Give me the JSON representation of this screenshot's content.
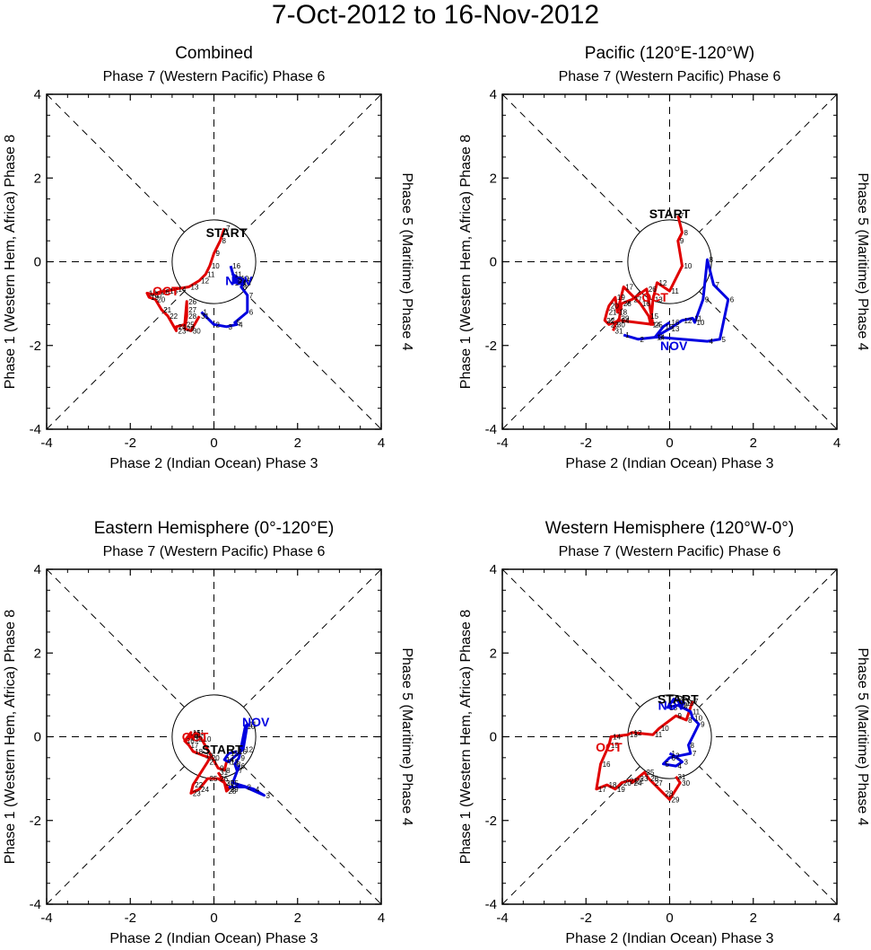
{
  "title": "7-Oct-2012 to 16-Nov-2012",
  "colors": {
    "oct": "#e00000",
    "nov": "#0000e0",
    "axis": "#000000"
  },
  "chart_data": [
    {
      "type": "line",
      "panel_title": "Combined",
      "top_label": "Phase 7 (Western Pacific) Phase 6",
      "bottom_label": "Phase 2 (Indian Ocean) Phase 3",
      "left_label": "Phase 1 (Western Hem, Africa) Phase 8",
      "right_label": "Phase 5 (Maritime) Phase 4",
      "xlim": [
        -4,
        4
      ],
      "ylim": [
        -4,
        4
      ],
      "xticks": [
        "-4",
        "-2",
        "0",
        "2",
        "4"
      ],
      "yticks": [
        "-4",
        "-2",
        "0",
        "2",
        "4"
      ],
      "start_label": "START",
      "start_pos": [
        0.3,
        0.7
      ],
      "series": [
        {
          "name": "OCT",
          "label_pos": [
            -1.15,
            -0.7
          ],
          "points": [
            [
              "7",
              0.25,
              0.8
            ],
            [
              "8",
              0.15,
              0.5
            ],
            [
              "9",
              0.0,
              0.2
            ],
            [
              "10",
              -0.1,
              -0.1
            ],
            [
              "11",
              -0.2,
              -0.3
            ],
            [
              "12",
              -0.35,
              -0.45
            ],
            [
              "13",
              -0.6,
              -0.6
            ],
            [
              "14",
              -0.9,
              -0.65
            ],
            [
              "15",
              -1.1,
              -0.7
            ],
            [
              "16",
              -1.3,
              -0.72
            ],
            [
              "17",
              -1.45,
              -0.78
            ],
            [
              "18",
              -1.6,
              -0.75
            ],
            [
              "19",
              -1.55,
              -0.85
            ],
            [
              "20",
              -1.4,
              -0.9
            ],
            [
              "21",
              -1.25,
              -1.15
            ],
            [
              "22",
              -1.1,
              -1.3
            ],
            [
              "23",
              -0.9,
              -1.65
            ],
            [
              "24",
              -0.9,
              -1.55
            ],
            [
              "25",
              -0.7,
              -1.5
            ],
            [
              "26",
              -0.65,
              -0.95
            ],
            [
              "27",
              -0.65,
              -1.15
            ],
            [
              "28",
              -0.65,
              -1.3
            ],
            [
              "29",
              -0.7,
              -1.6
            ],
            [
              "30",
              -0.55,
              -1.65
            ],
            [
              "31",
              -0.35,
              -1.3
            ]
          ]
        },
        {
          "name": "NOV",
          "label_pos": [
            0.6,
            -0.45
          ],
          "points": [
            [
              "1",
              -0.3,
              -1.2
            ],
            [
              "2",
              0.0,
              -1.5
            ],
            [
              "3",
              0.3,
              -1.55
            ],
            [
              "4",
              0.55,
              -1.5
            ],
            [
              "5",
              0.5,
              -1.45
            ],
            [
              "6",
              0.8,
              -1.2
            ],
            [
              "7",
              0.8,
              -0.8
            ],
            [
              "8",
              0.65,
              -0.6
            ],
            [
              "9",
              0.75,
              -0.45
            ],
            [
              "10",
              0.6,
              -0.4
            ],
            [
              "11",
              0.45,
              -0.3
            ],
            [
              "12",
              0.55,
              -0.45
            ],
            [
              "13",
              0.65,
              -0.5
            ],
            [
              "14",
              0.45,
              -0.5
            ],
            [
              "15",
              0.5,
              -0.45
            ],
            [
              "16",
              0.4,
              -0.1
            ]
          ]
        }
      ]
    },
    {
      "type": "line",
      "panel_title": "Pacific (120°E-120°W)",
      "top_label": "Phase 7 (Western Pacific) Phase 6",
      "bottom_label": "Phase 2 (Indian Ocean) Phase 3",
      "left_label": "Phase 1 (Western Hem, Africa) Phase 8",
      "right_label": "Phase 5 (Maritime) Phase 4",
      "xlim": [
        -4,
        4
      ],
      "ylim": [
        -4,
        4
      ],
      "xticks": [
        "-4",
        "-2",
        "0",
        "2",
        "4"
      ],
      "yticks": [
        "-4",
        "-2",
        "0",
        "2",
        "4"
      ],
      "start_label": "START",
      "start_pos": [
        0.0,
        1.15
      ],
      "series": [
        {
          "name": "OCT",
          "label_pos": [
            -0.35,
            -0.85
          ],
          "points": [
            [
              "7",
              0.2,
              1.1
            ],
            [
              "8",
              0.3,
              0.7
            ],
            [
              "9",
              0.2,
              0.5
            ],
            [
              "10",
              0.3,
              -0.1
            ],
            [
              "11",
              0.0,
              -0.7
            ],
            [
              "12",
              -0.3,
              -0.5
            ],
            [
              "13",
              -0.4,
              -0.9
            ],
            [
              "14",
              -0.45,
              -1.5
            ],
            [
              "15",
              -0.5,
              -1.3
            ],
            [
              "16",
              -0.7,
              -1.0
            ],
            [
              "17",
              -1.1,
              -0.6
            ],
            [
              "18",
              -1.25,
              -1.2
            ],
            [
              "19",
              -1.3,
              -0.85
            ],
            [
              "20",
              -1.45,
              -1.05
            ],
            [
              "21",
              -1.5,
              -1.2
            ],
            [
              "22",
              -1.55,
              -1.4
            ],
            [
              "23",
              -1.45,
              -1.5
            ],
            [
              "24",
              -1.2,
              -1.4
            ],
            [
              "25",
              -0.4,
              -1.5
            ],
            [
              "26",
              -0.55,
              -0.65
            ],
            [
              "27",
              -0.9,
              -0.9
            ],
            [
              "28",
              -1.15,
              -1.0
            ],
            [
              "29",
              -1.2,
              -1.35
            ],
            [
              "30",
              -1.3,
              -1.5
            ],
            [
              "31",
              -1.35,
              -1.65
            ]
          ]
        },
        {
          "name": "NOV",
          "label_pos": [
            0.1,
            -2.0
          ],
          "points": [
            [
              "1",
              -1.1,
              -1.75
            ],
            [
              "2",
              -0.75,
              -1.85
            ],
            [
              "3",
              -0.3,
              -1.8
            ],
            [
              "4",
              0.9,
              -1.9
            ],
            [
              "5",
              1.2,
              -1.85
            ],
            [
              "6",
              1.4,
              -0.9
            ],
            [
              "7",
              1.05,
              -0.55
            ],
            [
              "8",
              0.9,
              0.05
            ],
            [
              "9",
              0.8,
              -0.9
            ],
            [
              "10",
              0.6,
              -1.45
            ],
            [
              "11",
              0.55,
              -1.35
            ],
            [
              "12",
              0.3,
              -1.4
            ],
            [
              "13",
              0.0,
              -1.6
            ],
            [
              "14",
              -0.35,
              -1.8
            ],
            [
              "15",
              -0.15,
              -1.55
            ],
            [
              "16",
              0.0,
              -1.45
            ]
          ]
        }
      ]
    },
    {
      "type": "line",
      "panel_title": "Eastern Hemisphere (0°-120°E)",
      "top_label": "Phase 7 (Western Pacific) Phase 6",
      "bottom_label": "Phase 2 (Indian Ocean) Phase 3",
      "left_label": "Phase 1 (Western Hem, Africa) Phase 8",
      "right_label": "Phase 5 (Maritime) Phase 4",
      "xlim": [
        -4,
        4
      ],
      "ylim": [
        -4,
        4
      ],
      "xticks": [
        "-4",
        "-2",
        "0",
        "2",
        "4"
      ],
      "yticks": [
        "-4",
        "-2",
        "0",
        "2",
        "4"
      ],
      "start_label": "START",
      "start_pos": [
        0.2,
        -0.3
      ],
      "series": [
        {
          "name": "OCT",
          "label_pos": [
            -0.45,
            0.0
          ],
          "points": [
            [
              "7",
              0.3,
              -0.6
            ],
            [
              "8",
              0.25,
              -0.8
            ],
            [
              "9",
              0.1,
              -0.75
            ],
            [
              "10",
              -0.3,
              -0.05
            ],
            [
              "11",
              -0.45,
              0.1
            ],
            [
              "12",
              -0.5,
              -0.05
            ],
            [
              "13",
              -0.55,
              0.05
            ],
            [
              "14",
              -0.6,
              0.0
            ],
            [
              "15",
              -0.55,
              0.1
            ],
            [
              "16",
              -0.7,
              -0.1
            ],
            [
              "17",
              -0.6,
              -0.2
            ],
            [
              "18",
              -0.5,
              -0.35
            ],
            [
              "19",
              -0.25,
              -0.45
            ],
            [
              "20",
              -0.1,
              -0.5
            ],
            [
              "21",
              -0.15,
              -0.6
            ],
            [
              "22",
              -0.5,
              -1.15
            ],
            [
              "23",
              -0.55,
              -1.35
            ],
            [
              "24",
              -0.35,
              -1.25
            ],
            [
              "25",
              -0.15,
              -1.0
            ],
            [
              "26",
              0.1,
              -1.0
            ],
            [
              "27",
              0.25,
              -1.1
            ],
            [
              "28",
              0.3,
              -1.3
            ],
            [
              "29",
              0.35,
              -1.25
            ],
            [
              "30",
              0.25,
              -1.1
            ],
            [
              "31",
              0.1,
              -0.85
            ]
          ]
        },
        {
          "name": "NOV",
          "label_pos": [
            1.0,
            0.35
          ],
          "points": [
            [
              "1",
              0.35,
              -1.2
            ],
            [
              "2",
              0.75,
              -1.2
            ],
            [
              "3",
              1.2,
              -1.4
            ],
            [
              "4",
              0.95,
              -1.25
            ],
            [
              "5",
              0.45,
              -1.1
            ],
            [
              "6",
              0.6,
              -0.7
            ],
            [
              "7",
              0.55,
              -0.8
            ],
            [
              "8",
              0.5,
              -0.65
            ],
            [
              "9",
              0.6,
              -0.5
            ],
            [
              "10",
              0.75,
              0.25
            ],
            [
              "11",
              0.8,
              0.3
            ],
            [
              "12",
              0.7,
              -0.3
            ],
            [
              "13",
              0.35,
              -0.6
            ],
            [
              "14",
              0.25,
              -0.55
            ],
            [
              "15",
              0.35,
              -0.4
            ],
            [
              "16",
              0.55,
              -0.35
            ]
          ]
        }
      ]
    },
    {
      "type": "line",
      "panel_title": "Western Hemisphere (120°W-0°)",
      "top_label": "Phase 7 (Western Pacific) Phase 6",
      "bottom_label": "Phase 2 (Indian Ocean) Phase 3",
      "left_label": "Phase 1 (Western Hem, Africa) Phase 8",
      "right_label": "Phase 5 (Maritime) Phase 4",
      "xlim": [
        -4,
        4
      ],
      "ylim": [
        -4,
        4
      ],
      "xticks": [
        "-4",
        "-2",
        "0",
        "2",
        "4"
      ],
      "yticks": [
        "-4",
        "-2",
        "0",
        "2",
        "4"
      ],
      "start_label": "START",
      "start_pos": [
        0.2,
        0.9
      ],
      "series": [
        {
          "name": "OCT",
          "label_pos": [
            -1.45,
            -0.25
          ],
          "points": [
            [
              "7",
              0.55,
              0.85
            ],
            [
              "8",
              0.4,
              0.4
            ],
            [
              "9",
              0.15,
              0.5
            ],
            [
              "10",
              -0.25,
              0.2
            ],
            [
              "11",
              -0.4,
              0.05
            ],
            [
              "12",
              -0.9,
              0.1
            ],
            [
              "13",
              -1.0,
              0.05
            ],
            [
              "14",
              -1.4,
              0.0
            ],
            [
              "15",
              -1.45,
              -0.2
            ],
            [
              "16",
              -1.65,
              -0.65
            ],
            [
              "17",
              -1.75,
              -1.25
            ],
            [
              "18",
              -1.5,
              -1.15
            ],
            [
              "19",
              -1.3,
              -1.25
            ],
            [
              "20",
              -1.15,
              -1.1
            ],
            [
              "21",
              -1.0,
              -1.05
            ],
            [
              "22",
              -0.85,
              -1.05
            ],
            [
              "23",
              -0.75,
              -1.0
            ],
            [
              "24",
              -0.9,
              -1.1
            ],
            [
              "25",
              -0.6,
              -0.85
            ],
            [
              "26",
              -0.5,
              -1.0
            ],
            [
              "27",
              -0.4,
              -1.1
            ],
            [
              "28",
              -0.15,
              -1.35
            ],
            [
              "29",
              0.0,
              -1.5
            ],
            [
              "30",
              0.25,
              -1.1
            ],
            [
              "31",
              0.15,
              -0.95
            ]
          ]
        },
        {
          "name": "NOV",
          "label_pos": [
            0.05,
            0.75
          ],
          "points": [
            [
              "1",
              0.0,
              -0.4
            ],
            [
              "2",
              0.1,
              -0.45
            ],
            [
              "3",
              0.3,
              -0.6
            ],
            [
              "4",
              0.15,
              -0.7
            ],
            [
              "5",
              -0.15,
              -0.65
            ],
            [
              "6",
              0.0,
              -0.5
            ],
            [
              "7",
              0.5,
              -0.4
            ],
            [
              "8",
              0.45,
              -0.2
            ],
            [
              "9",
              0.7,
              0.3
            ],
            [
              "10",
              0.55,
              0.45
            ],
            [
              "11",
              0.5,
              0.6
            ],
            [
              "12",
              0.2,
              0.75
            ],
            [
              "13",
              -0.05,
              0.7
            ],
            [
              "14",
              0.1,
              0.9
            ],
            [
              "15",
              0.35,
              0.8
            ],
            [
              "16",
              0.2,
              0.75
            ]
          ]
        }
      ]
    }
  ]
}
